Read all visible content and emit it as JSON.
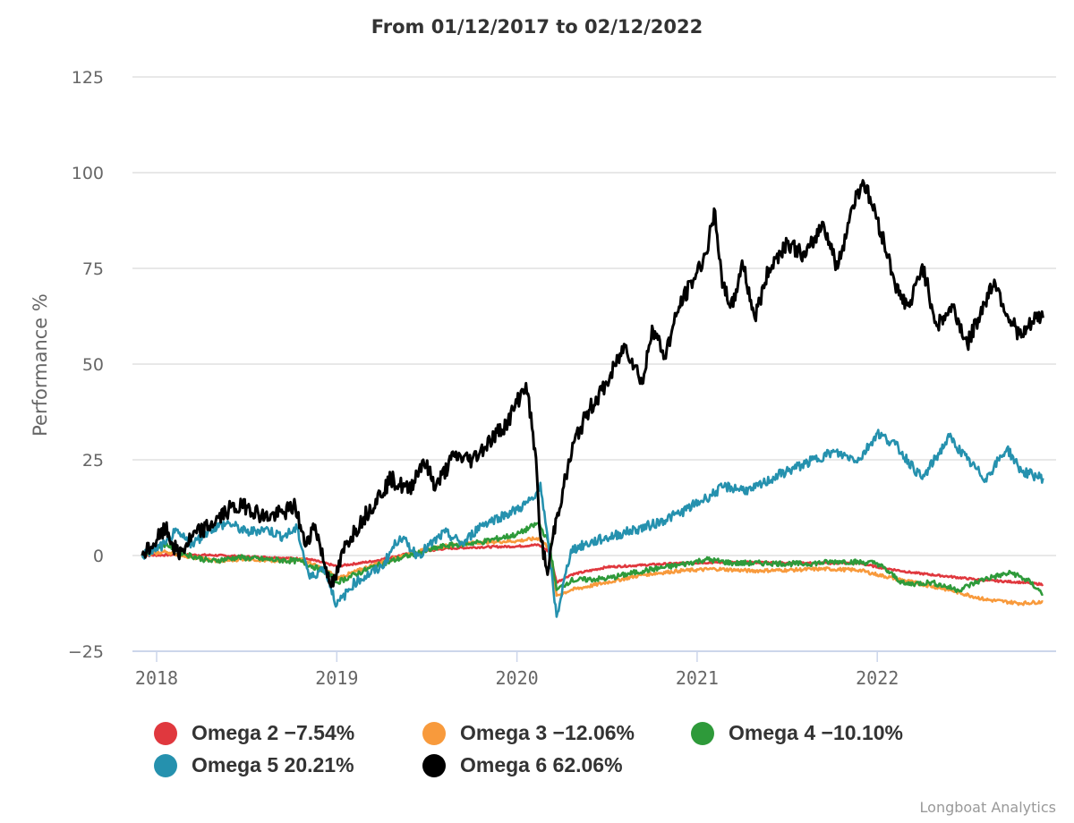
{
  "chart_data": {
    "type": "line",
    "title": "From 01/12/2017 to 02/12/2022",
    "xlabel": "",
    "ylabel": "Performance %",
    "ylim": [
      -25,
      125
    ],
    "xlim": [
      2017.92,
      2022.92
    ],
    "yticks": [
      125,
      100,
      75,
      50,
      25,
      0,
      -25
    ],
    "ytick_labels": [
      "125",
      "100",
      "75",
      "50",
      "25",
      "0",
      "−25"
    ],
    "xticks": [
      2018,
      2019,
      2020,
      2021,
      2022
    ],
    "xtick_labels": [
      "2018",
      "2019",
      "2020",
      "2021",
      "2022"
    ],
    "grid": true,
    "legend_position": "bottom-left",
    "series": [
      {
        "name": "Omega 2",
        "legend_label": "Omega 2 −7.54%",
        "color": "#e0383e",
        "x": [
          2017.92,
          2018.1,
          2018.3,
          2018.5,
          2018.7,
          2018.85,
          2019.0,
          2019.2,
          2019.4,
          2019.6,
          2019.8,
          2020.0,
          2020.12,
          2020.18,
          2020.22,
          2020.3,
          2020.5,
          2020.7,
          2020.9,
          2021.1,
          2021.3,
          2021.5,
          2021.7,
          2021.9,
          2022.0,
          2022.2,
          2022.4,
          2022.6,
          2022.8,
          2022.92
        ],
        "y": [
          0,
          0.2,
          0.1,
          -0.3,
          -0.6,
          -1.0,
          -2.8,
          -1.5,
          0.5,
          1.8,
          2.2,
          2.4,
          2.8,
          1.0,
          -7.0,
          -5.0,
          -3.0,
          -2.5,
          -2.0,
          -1.8,
          -1.8,
          -1.9,
          -2.0,
          -2.0,
          -3.0,
          -4.5,
          -5.5,
          -6.5,
          -7.0,
          -7.54
        ]
      },
      {
        "name": "Omega 3",
        "legend_label": "Omega 3 −12.06%",
        "color": "#f89a3c",
        "x": [
          2017.92,
          2018.05,
          2018.2,
          2018.35,
          2018.5,
          2018.65,
          2018.8,
          2018.95,
          2019.0,
          2019.2,
          2019.4,
          2019.6,
          2019.8,
          2020.0,
          2020.12,
          2020.18,
          2020.22,
          2020.3,
          2020.5,
          2020.7,
          2020.9,
          2021.1,
          2021.3,
          2021.5,
          2021.7,
          2021.9,
          2022.0,
          2022.2,
          2022.4,
          2022.6,
          2022.8,
          2022.92
        ],
        "y": [
          0,
          1.0,
          -0.5,
          -1.5,
          -0.8,
          -1.5,
          -1.0,
          -4.0,
          -6.0,
          -2.5,
          0.5,
          2.5,
          3.5,
          3.8,
          4.5,
          2.0,
          -10.5,
          -9.0,
          -7.0,
          -5.0,
          -4.0,
          -3.5,
          -4.0,
          -3.8,
          -3.5,
          -3.8,
          -5.0,
          -7.0,
          -9.0,
          -11.5,
          -12.5,
          -12.06
        ]
      },
      {
        "name": "Omega 4",
        "legend_label": "Omega 4 −10.10%",
        "color": "#2e9a3a",
        "x": [
          2017.92,
          2018.05,
          2018.15,
          2018.3,
          2018.45,
          2018.6,
          2018.8,
          2018.95,
          2019.0,
          2019.2,
          2019.4,
          2019.6,
          2019.8,
          2020.0,
          2020.12,
          2020.18,
          2020.22,
          2020.3,
          2020.5,
          2020.7,
          2020.9,
          2021.05,
          2021.2,
          2021.4,
          2021.6,
          2021.8,
          2022.0,
          2022.15,
          2022.3,
          2022.45,
          2022.6,
          2022.75,
          2022.85,
          2022.92
        ],
        "y": [
          0,
          3.0,
          0.5,
          -1.5,
          -0.5,
          -1.0,
          -1.5,
          -4.5,
          -7.0,
          -3.0,
          0.0,
          2.5,
          3.5,
          5.5,
          8.5,
          3.0,
          -9.0,
          -6.5,
          -6.0,
          -4.0,
          -2.5,
          -1.0,
          -2.0,
          -2.0,
          -2.2,
          -1.5,
          -2.0,
          -7.5,
          -7.0,
          -9.0,
          -6.0,
          -4.5,
          -7.0,
          -10.1
        ]
      },
      {
        "name": "Omega 5",
        "legend_label": "Omega 5 20.21%",
        "color": "#2591ae",
        "x": [
          2017.92,
          2018.05,
          2018.1,
          2018.2,
          2018.3,
          2018.4,
          2018.5,
          2018.6,
          2018.7,
          2018.78,
          2018.85,
          2018.93,
          2019.0,
          2019.1,
          2019.25,
          2019.35,
          2019.45,
          2019.6,
          2019.7,
          2019.8,
          2019.9,
          2020.0,
          2020.1,
          2020.13,
          2020.18,
          2020.22,
          2020.3,
          2020.45,
          2020.6,
          2020.75,
          2020.9,
          2021.05,
          2021.15,
          2021.3,
          2021.45,
          2021.6,
          2021.75,
          2021.9,
          2022.0,
          2022.1,
          2022.25,
          2022.4,
          2022.5,
          2022.6,
          2022.72,
          2022.8,
          2022.92
        ],
        "y": [
          0,
          3.0,
          6.0,
          3.0,
          7.0,
          8.5,
          6.0,
          7.0,
          5.0,
          7.0,
          -6.0,
          -3.0,
          -13.0,
          -7.0,
          -3.0,
          5.0,
          0.0,
          6.0,
          3.0,
          8.0,
          10.0,
          12.0,
          15.0,
          19.0,
          0.0,
          -16.0,
          1.5,
          4.0,
          6.0,
          8.0,
          11.0,
          15.0,
          18.0,
          17.0,
          21.0,
          24.0,
          27.0,
          25.0,
          32.0,
          29.0,
          20.0,
          31.0,
          25.0,
          20.0,
          28.0,
          22.0,
          20.21
        ]
      },
      {
        "name": "Omega 6",
        "legend_label": "Omega 6 62.06%",
        "color": "#000000",
        "x": [
          2017.92,
          2018.0,
          2018.05,
          2018.12,
          2018.2,
          2018.3,
          2018.4,
          2018.5,
          2018.6,
          2018.7,
          2018.77,
          2018.82,
          2018.88,
          2018.93,
          2018.98,
          2019.05,
          2019.15,
          2019.3,
          2019.4,
          2019.48,
          2019.55,
          2019.65,
          2019.75,
          2019.85,
          2019.95,
          2020.05,
          2020.1,
          2020.13,
          2020.17,
          2020.2,
          2020.22,
          2020.26,
          2020.32,
          2020.4,
          2020.5,
          2020.6,
          2020.7,
          2020.75,
          2020.82,
          2020.9,
          2021.0,
          2021.05,
          2021.1,
          2021.14,
          2021.2,
          2021.25,
          2021.32,
          2021.4,
          2021.5,
          2021.6,
          2021.7,
          2021.78,
          2021.86,
          2021.92,
          2022.0,
          2022.06,
          2022.12,
          2022.18,
          2022.25,
          2022.33,
          2022.42,
          2022.5,
          2022.56,
          2022.65,
          2022.72,
          2022.8,
          2022.88,
          2022.92
        ],
        "y": [
          0,
          4.0,
          7.0,
          0.0,
          5.0,
          8.0,
          12.0,
          13.0,
          10.0,
          11.0,
          13.0,
          3.0,
          8.0,
          -2.0,
          -8.0,
          3.0,
          10.0,
          20.0,
          17.0,
          25.0,
          18.0,
          26.0,
          25.0,
          30.0,
          35.0,
          45.0,
          28.0,
          5.0,
          -5.0,
          5.0,
          10.0,
          18.0,
          30.0,
          38.0,
          45.0,
          55.0,
          45.0,
          60.0,
          52.0,
          65.0,
          74.0,
          79.0,
          90.0,
          70.0,
          65.0,
          77.0,
          62.0,
          75.0,
          82.0,
          78.0,
          87.0,
          75.0,
          91.0,
          98.0,
          88.0,
          78.0,
          68.0,
          65.0,
          76.0,
          60.0,
          65.0,
          55.0,
          62.0,
          72.0,
          63.0,
          57.0,
          62.0,
          62.06
        ]
      }
    ]
  },
  "credit": "Longboat Analytics"
}
